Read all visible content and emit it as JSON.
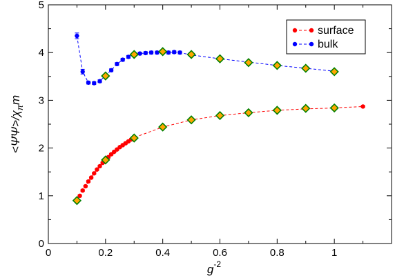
{
  "chart_data": {
    "type": "line",
    "xlabel": "g",
    "xlabel_sup": "-2",
    "ylabel": "<Ψ̄Ψ>/χ",
    "ylabel_sub": "π",
    "ylabel_tail": "m",
    "xlim": [
      0,
      1.2
    ],
    "ylim": [
      0,
      5
    ],
    "xticks": [
      0,
      0.2,
      0.4,
      0.6,
      0.8,
      1
    ],
    "xtick_labels": [
      "0",
      "0.2",
      "0.4",
      "0.6",
      "0.8",
      "1"
    ],
    "yticks": [
      0,
      1,
      2,
      3,
      4,
      5
    ],
    "ytick_labels": [
      "0",
      "1",
      "2",
      "3",
      "4",
      "5"
    ],
    "legend_position": "top-right",
    "grid": false,
    "series": [
      {
        "name": "surface",
        "color": "#ff0000",
        "marker": "circle",
        "line": "dashed",
        "x": [
          0.1,
          0.11,
          0.12,
          0.13,
          0.14,
          0.15,
          0.16,
          0.17,
          0.18,
          0.19,
          0.2,
          0.21,
          0.22,
          0.23,
          0.24,
          0.25,
          0.26,
          0.27,
          0.28,
          0.29,
          0.3,
          0.4,
          0.5,
          0.6,
          0.7,
          0.8,
          0.9,
          1.0,
          1.1
        ],
        "y": [
          0.9,
          1.0,
          1.11,
          1.2,
          1.3,
          1.38,
          1.47,
          1.55,
          1.62,
          1.69,
          1.75,
          1.81,
          1.87,
          1.92,
          1.97,
          2.02,
          2.06,
          2.1,
          2.14,
          2.18,
          2.22,
          2.44,
          2.59,
          2.68,
          2.74,
          2.79,
          2.82,
          2.84,
          2.87
        ],
        "yerr": [
          0.02,
          0.02,
          0.02,
          0.02,
          0.02,
          0.02,
          0.02,
          0.02,
          0.02,
          0.02,
          0.02,
          0.02,
          0.02,
          0.02,
          0.02,
          0.02,
          0.02,
          0.02,
          0.02,
          0.02,
          0.02,
          0.02,
          0.02,
          0.02,
          0.02,
          0.02,
          0.02,
          0.02,
          0.02
        ]
      },
      {
        "name": "bulk",
        "color": "#0000ff",
        "marker": "circle",
        "line": "dashed",
        "x": [
          0.1,
          0.12,
          0.14,
          0.16,
          0.18,
          0.2,
          0.22,
          0.24,
          0.26,
          0.28,
          0.3,
          0.32,
          0.34,
          0.36,
          0.38,
          0.4,
          0.42,
          0.44,
          0.46,
          0.5,
          0.6,
          0.7,
          0.8,
          0.9,
          1.0
        ],
        "y": [
          4.35,
          3.6,
          3.37,
          3.36,
          3.4,
          3.52,
          3.63,
          3.76,
          3.85,
          3.91,
          3.95,
          3.98,
          3.99,
          4.0,
          4.0,
          4.02,
          4.0,
          4.01,
          4.0,
          3.95,
          3.87,
          3.8,
          3.73,
          3.67,
          3.61
        ],
        "yerr": [
          0.06,
          0.05,
          0.03,
          0.03,
          0.03,
          0.03,
          0.03,
          0.03,
          0.03,
          0.03,
          0.03,
          0.03,
          0.03,
          0.03,
          0.03,
          0.03,
          0.03,
          0.03,
          0.03,
          0.03,
          0.03,
          0.03,
          0.03,
          0.03,
          0.03
        ]
      },
      {
        "name": "",
        "marker": "diamond",
        "line": "none",
        "fill": "#ffa500",
        "stroke": "#008000",
        "x": [
          0.1,
          0.2,
          0.3,
          0.4,
          0.5,
          0.6,
          0.7,
          0.8,
          0.9,
          1.0,
          0.2,
          0.3,
          0.4,
          0.5,
          0.6,
          0.7,
          0.8,
          0.9,
          1.0
        ],
        "y": [
          0.9,
          1.75,
          2.21,
          2.44,
          2.59,
          2.68,
          2.74,
          2.79,
          2.83,
          2.84,
          3.51,
          3.96,
          4.02,
          3.96,
          3.87,
          3.79,
          3.73,
          3.67,
          3.6
        ]
      }
    ]
  }
}
